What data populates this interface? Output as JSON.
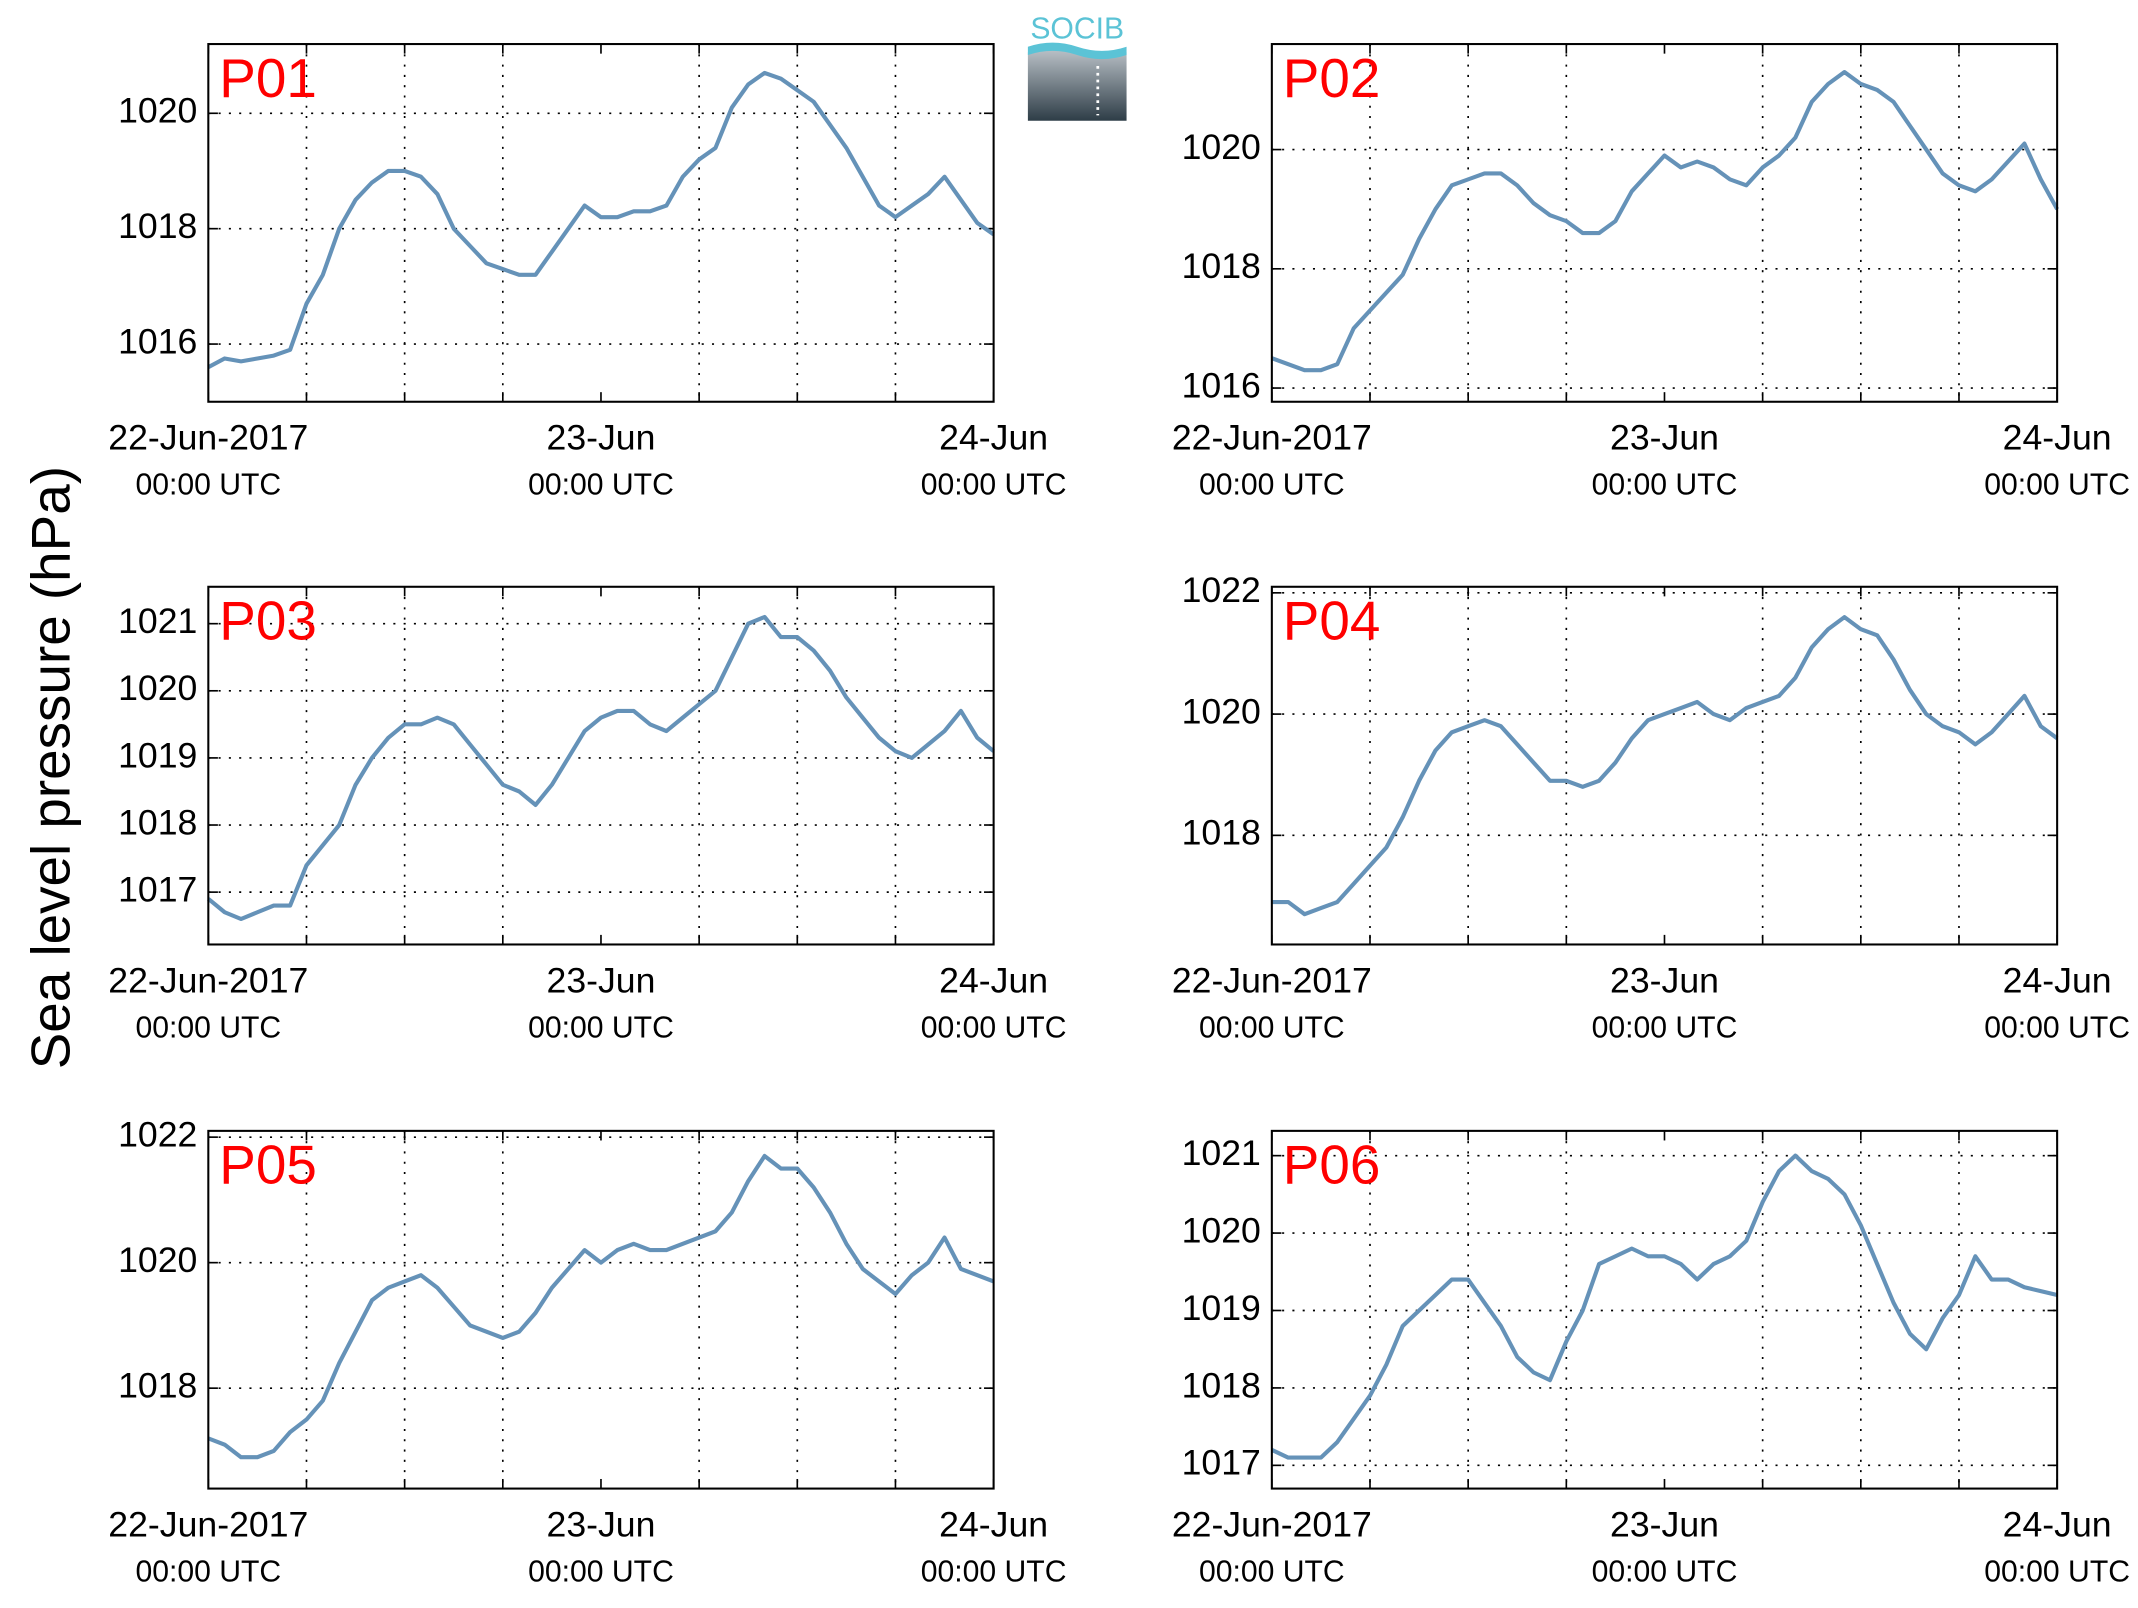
{
  "ylabel": "Sea level pressure (hPa)",
  "logo": "SOCIB",
  "chart_data": [
    {
      "type": "line",
      "title": "P01",
      "color": "#6592b8",
      "grid": true,
      "x": [
        0,
        1,
        2,
        3,
        4,
        5,
        6,
        7,
        8,
        9,
        10,
        11,
        12,
        13,
        14,
        15,
        16,
        17,
        18,
        19,
        20,
        21,
        22,
        23,
        24,
        25,
        26,
        27,
        28,
        29,
        30,
        31,
        32,
        33,
        34,
        35,
        36,
        37,
        38,
        39,
        40,
        41,
        42,
        43,
        44,
        45,
        46,
        47,
        48
      ],
      "values": [
        1015.6,
        1015.75,
        1015.7,
        1015.75,
        1015.8,
        1015.9,
        1016.7,
        1017.2,
        1018.0,
        1018.5,
        1018.8,
        1019.0,
        1019.0,
        1018.9,
        1018.6,
        1018.0,
        1017.7,
        1017.4,
        1017.3,
        1017.2,
        1017.2,
        1017.6,
        1018.0,
        1018.4,
        1018.2,
        1018.2,
        1018.3,
        1018.3,
        1018.4,
        1018.9,
        1019.2,
        1019.4,
        1020.1,
        1020.5,
        1020.7,
        1020.6,
        1020.4,
        1020.2,
        1019.8,
        1019.4,
        1018.9,
        1018.4,
        1018.2,
        1018.4,
        1018.6,
        1018.9,
        1018.5,
        1018.1,
        1017.9
      ],
      "xlim": [
        0,
        48
      ],
      "xticks": [
        {
          "value": 0,
          "label": [
            "22-Jun-2017",
            "00:00 UTC"
          ]
        },
        {
          "value": 24,
          "label": [
            "23-Jun",
            "00:00 UTC"
          ]
        },
        {
          "value": 48,
          "label": [
            "24-Jun",
            "00:00 UTC"
          ]
        }
      ],
      "xticks_minor": [
        6,
        12,
        18,
        30,
        36,
        42
      ],
      "ylim": [
        1015.0,
        1021.2
      ],
      "yticks": [
        1016,
        1018,
        1020
      ]
    },
    {
      "type": "line",
      "title": "P02",
      "color": "#6592b8",
      "grid": true,
      "x": [
        0,
        1,
        2,
        3,
        4,
        5,
        6,
        7,
        8,
        9,
        10,
        11,
        12,
        13,
        14,
        15,
        16,
        17,
        18,
        19,
        20,
        21,
        22,
        23,
        24,
        25,
        26,
        27,
        28,
        29,
        30,
        31,
        32,
        33,
        34,
        35,
        36,
        37,
        38,
        39,
        40,
        41,
        42,
        43,
        44,
        45,
        46,
        47,
        48
      ],
      "values": [
        1016.5,
        1016.4,
        1016.3,
        1016.3,
        1016.4,
        1017.0,
        1017.3,
        1017.6,
        1017.9,
        1018.5,
        1019.0,
        1019.4,
        1019.5,
        1019.6,
        1019.6,
        1019.4,
        1019.1,
        1018.9,
        1018.8,
        1018.6,
        1018.6,
        1018.8,
        1019.3,
        1019.6,
        1019.9,
        1019.7,
        1019.8,
        1019.7,
        1019.5,
        1019.4,
        1019.7,
        1019.9,
        1020.2,
        1020.8,
        1021.1,
        1021.3,
        1021.1,
        1021.0,
        1020.8,
        1020.4,
        1020.0,
        1019.6,
        1019.4,
        1019.3,
        1019.5,
        1019.8,
        1020.1,
        1019.5,
        1019.0
      ],
      "xlim": [
        0,
        48
      ],
      "xticks": [
        {
          "value": 0,
          "label": [
            "22-Jun-2017",
            "00:00 UTC"
          ]
        },
        {
          "value": 24,
          "label": [
            "23-Jun",
            "00:00 UTC"
          ]
        },
        {
          "value": 48,
          "label": [
            "24-Jun",
            "00:00 UTC"
          ]
        }
      ],
      "xticks_minor": [
        6,
        12,
        18,
        30,
        36,
        42
      ],
      "ylim": [
        1015.77,
        1021.77
      ],
      "yticks": [
        1016,
        1018,
        1020
      ]
    },
    {
      "type": "line",
      "title": "P03",
      "color": "#6592b8",
      "grid": true,
      "x": [
        0,
        1,
        2,
        3,
        4,
        5,
        6,
        7,
        8,
        9,
        10,
        11,
        12,
        13,
        14,
        15,
        16,
        17,
        18,
        19,
        20,
        21,
        22,
        23,
        24,
        25,
        26,
        27,
        28,
        29,
        30,
        31,
        32,
        33,
        34,
        35,
        36,
        37,
        38,
        39,
        40,
        41,
        42,
        43,
        44,
        45,
        46,
        47,
        48
      ],
      "values": [
        1016.9,
        1016.7,
        1016.6,
        1016.7,
        1016.8,
        1016.8,
        1017.4,
        1017.7,
        1018.0,
        1018.6,
        1019.0,
        1019.3,
        1019.5,
        1019.5,
        1019.6,
        1019.5,
        1019.2,
        1018.9,
        1018.6,
        1018.5,
        1018.3,
        1018.6,
        1019.0,
        1019.4,
        1019.6,
        1019.7,
        1019.7,
        1019.5,
        1019.4,
        1019.6,
        1019.8,
        1020.0,
        1020.5,
        1021.0,
        1021.1,
        1020.8,
        1020.8,
        1020.6,
        1020.3,
        1019.9,
        1019.6,
        1019.3,
        1019.1,
        1019.0,
        1019.2,
        1019.4,
        1019.7,
        1019.3,
        1019.1
      ],
      "xlim": [
        0,
        48
      ],
      "xticks": [
        {
          "value": 0,
          "label": [
            "22-Jun-2017",
            "00:00 UTC"
          ]
        },
        {
          "value": 24,
          "label": [
            "23-Jun",
            "00:00 UTC"
          ]
        },
        {
          "value": 48,
          "label": [
            "24-Jun",
            "00:00 UTC"
          ]
        }
      ],
      "xticks_minor": [
        6,
        12,
        18,
        30,
        36,
        42
      ],
      "ylim": [
        1016.22,
        1021.55
      ],
      "yticks": [
        1017,
        1018,
        1019,
        1020,
        1021
      ]
    },
    {
      "type": "line",
      "title": "P04",
      "color": "#6592b8",
      "grid": true,
      "x": [
        0,
        1,
        2,
        3,
        4,
        5,
        6,
        7,
        8,
        9,
        10,
        11,
        12,
        13,
        14,
        15,
        16,
        17,
        18,
        19,
        20,
        21,
        22,
        23,
        24,
        25,
        26,
        27,
        28,
        29,
        30,
        31,
        32,
        33,
        34,
        35,
        36,
        37,
        38,
        39,
        40,
        41,
        42,
        43,
        44,
        45,
        46,
        47,
        48
      ],
      "values": [
        1016.9,
        1016.9,
        1016.7,
        1016.8,
        1016.9,
        1017.2,
        1017.5,
        1017.8,
        1018.3,
        1018.9,
        1019.4,
        1019.7,
        1019.8,
        1019.9,
        1019.8,
        1019.5,
        1019.2,
        1018.9,
        1018.9,
        1018.8,
        1018.9,
        1019.2,
        1019.6,
        1019.9,
        1020.0,
        1020.1,
        1020.2,
        1020.0,
        1019.9,
        1020.1,
        1020.2,
        1020.3,
        1020.6,
        1021.1,
        1021.4,
        1021.6,
        1021.4,
        1021.3,
        1020.9,
        1020.4,
        1020.0,
        1019.8,
        1019.7,
        1019.5,
        1019.7,
        1020.0,
        1020.3,
        1019.8,
        1019.6
      ],
      "xlim": [
        0,
        48
      ],
      "xticks": [
        {
          "value": 0,
          "label": [
            "22-Jun-2017",
            "00:00 UTC"
          ]
        },
        {
          "value": 24,
          "label": [
            "23-Jun",
            "00:00 UTC"
          ]
        },
        {
          "value": 48,
          "label": [
            "24-Jun",
            "00:00 UTC"
          ]
        }
      ],
      "xticks_minor": [
        6,
        12,
        18,
        30,
        36,
        42
      ],
      "ylim": [
        1016.2,
        1022.1
      ],
      "yticks": [
        1018,
        1020,
        1022
      ]
    },
    {
      "type": "line",
      "title": "P05",
      "color": "#6592b8",
      "grid": true,
      "x": [
        0,
        1,
        2,
        3,
        4,
        5,
        6,
        7,
        8,
        9,
        10,
        11,
        12,
        13,
        14,
        15,
        16,
        17,
        18,
        19,
        20,
        21,
        22,
        23,
        24,
        25,
        26,
        27,
        28,
        29,
        30,
        31,
        32,
        33,
        34,
        35,
        36,
        37,
        38,
        39,
        40,
        41,
        42,
        43,
        44,
        45,
        46,
        47,
        48
      ],
      "values": [
        1017.2,
        1017.1,
        1016.9,
        1016.9,
        1017.0,
        1017.3,
        1017.5,
        1017.8,
        1018.4,
        1018.9,
        1019.4,
        1019.6,
        1019.7,
        1019.8,
        1019.6,
        1019.3,
        1019.0,
        1018.9,
        1018.8,
        1018.9,
        1019.2,
        1019.6,
        1019.9,
        1020.2,
        1020.0,
        1020.2,
        1020.3,
        1020.2,
        1020.2,
        1020.3,
        1020.4,
        1020.5,
        1020.8,
        1021.3,
        1021.7,
        1021.5,
        1021.5,
        1021.2,
        1020.8,
        1020.3,
        1019.9,
        1019.7,
        1019.5,
        1019.8,
        1020.0,
        1020.4,
        1019.9,
        1019.8,
        1019.7
      ],
      "xlim": [
        0,
        48
      ],
      "xticks": [
        {
          "value": 0,
          "label": [
            "22-Jun-2017",
            "00:00 UTC"
          ]
        },
        {
          "value": 24,
          "label": [
            "23-Jun",
            "00:00 UTC"
          ]
        },
        {
          "value": 48,
          "label": [
            "24-Jun",
            "00:00 UTC"
          ]
        }
      ],
      "xticks_minor": [
        6,
        12,
        18,
        30,
        36,
        42
      ],
      "ylim": [
        1016.4,
        1022.1
      ],
      "yticks": [
        1018,
        1020,
        1022
      ]
    },
    {
      "type": "line",
      "title": "P06",
      "color": "#6592b8",
      "grid": true,
      "x": [
        0,
        1,
        2,
        3,
        4,
        5,
        6,
        7,
        8,
        9,
        10,
        11,
        12,
        13,
        14,
        15,
        16,
        17,
        18,
        19,
        20,
        21,
        22,
        23,
        24,
        25,
        26,
        27,
        28,
        29,
        30,
        31,
        32,
        33,
        34,
        35,
        36,
        37,
        38,
        39,
        40,
        41,
        42,
        43,
        44,
        45,
        46,
        47,
        48
      ],
      "values": [
        1017.2,
        1017.1,
        1017.1,
        1017.1,
        1017.3,
        1017.6,
        1017.9,
        1018.3,
        1018.8,
        1019.0,
        1019.2,
        1019.4,
        1019.4,
        1019.1,
        1018.8,
        1018.4,
        1018.2,
        1018.1,
        1018.6,
        1019.0,
        1019.6,
        1019.7,
        1019.8,
        1019.7,
        1019.7,
        1019.6,
        1019.4,
        1019.6,
        1019.7,
        1019.9,
        1020.4,
        1020.8,
        1021.0,
        1020.8,
        1020.7,
        1020.5,
        1020.1,
        1019.6,
        1019.1,
        1018.7,
        1018.5,
        1018.9,
        1019.2,
        1019.7,
        1019.4,
        1019.4,
        1019.3,
        1019.25,
        1019.2
      ],
      "xlim": [
        0,
        48
      ],
      "xticks": [
        {
          "value": 0,
          "label": [
            "22-Jun-2017",
            "00:00 UTC"
          ]
        },
        {
          "value": 24,
          "label": [
            "23-Jun",
            "00:00 UTC"
          ]
        },
        {
          "value": 48,
          "label": [
            "24-Jun",
            "00:00 UTC"
          ]
        }
      ],
      "xticks_minor": [
        6,
        12,
        18,
        30,
        36,
        42
      ],
      "ylim": [
        1016.7,
        1021.32
      ],
      "yticks": [
        1017,
        1018,
        1019,
        1020,
        1021
      ]
    }
  ]
}
